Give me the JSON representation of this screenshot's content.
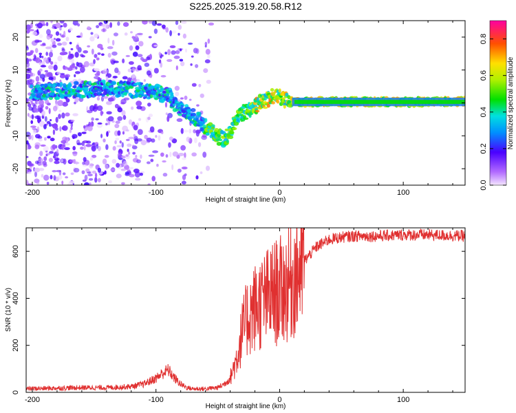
{
  "title": "S225.2025.319.20.58.R12",
  "chart_data": [
    {
      "type": "heatmap",
      "name": "spectrogram",
      "xlabel": "Height of straight line (km)",
      "ylabel": "Frequency (Hz)",
      "xlim": [
        -205,
        150
      ],
      "ylim": [
        -25,
        25
      ],
      "xticks": [
        -200,
        -100,
        0,
        100
      ],
      "yticks": [
        -20,
        -10,
        0,
        10,
        20
      ],
      "colorbar": {
        "label": "Normalized spectral amplitude",
        "range": [
          0.0,
          0.9
        ],
        "ticks": [
          0.0,
          0.2,
          0.4,
          0.6,
          0.8
        ]
      },
      "ridge": {
        "x": [
          -200,
          -180,
          -160,
          -140,
          -120,
          -100,
          -90,
          -80,
          -70,
          -60,
          -50,
          -45,
          -40,
          -35,
          -30,
          -25,
          -20,
          -15,
          -10,
          -5,
          0,
          5,
          10,
          20,
          40,
          60,
          80,
          100,
          120,
          150
        ],
        "y": [
          3,
          3.5,
          4,
          4.5,
          4,
          3.5,
          2,
          -2,
          -4,
          -7,
          -10,
          -11,
          -9,
          -5,
          -3,
          -2,
          -1,
          0,
          1,
          2,
          2,
          1,
          0.5,
          0.3,
          0.3,
          0.3,
          0.3,
          0.3,
          0.3,
          0.3
        ]
      }
    },
    {
      "type": "line",
      "name": "snr",
      "xlabel": "Height of straight line (km)",
      "ylabel": "SNR (10 * v/v)",
      "xlim": [
        -205,
        150
      ],
      "ylim": [
        0,
        700
      ],
      "xticks": [
        -200,
        -100,
        0,
        100
      ],
      "yticks": [
        0,
        200,
        400,
        600
      ],
      "color": "#e03030",
      "series": [
        {
          "name": "SNR",
          "x": [
            -205,
            -180,
            -160,
            -140,
            -120,
            -110,
            -100,
            -95,
            -90,
            -85,
            -80,
            -75,
            -70,
            -60,
            -50,
            -45,
            -40,
            -35,
            -30,
            -25,
            -20,
            -15,
            -10,
            -5,
            0,
            5,
            10,
            15,
            20,
            30,
            40,
            50,
            60,
            80,
            100,
            120,
            150
          ],
          "values": [
            15,
            18,
            20,
            20,
            25,
            35,
            60,
            80,
            95,
            60,
            35,
            20,
            15,
            15,
            20,
            35,
            60,
            140,
            260,
            330,
            360,
            380,
            400,
            420,
            430,
            450,
            480,
            520,
            560,
            620,
            650,
            660,
            665,
            665,
            670,
            670,
            665
          ]
        }
      ]
    }
  ]
}
